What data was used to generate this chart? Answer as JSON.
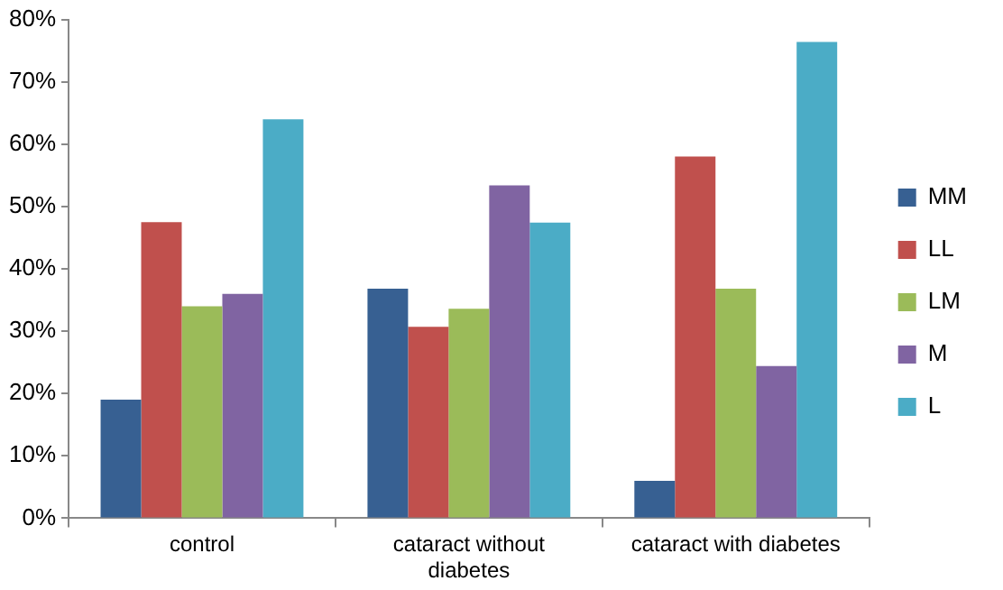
{
  "chart_data": {
    "type": "bar",
    "categories": [
      "control",
      "cataract without diabetes",
      "cataract with diabetes"
    ],
    "series": [
      {
        "name": "MM",
        "color": "#376092",
        "values": [
          19,
          36.8,
          6
        ]
      },
      {
        "name": "LL",
        "color": "#c0504d",
        "values": [
          47.5,
          30.7,
          58
        ]
      },
      {
        "name": "LM",
        "color": "#9bbb59",
        "values": [
          34,
          33.6,
          36.8
        ]
      },
      {
        "name": "M",
        "color": "#8064a2",
        "values": [
          36,
          53.4,
          24.4
        ]
      },
      {
        "name": "L",
        "color": "#4bacc6",
        "values": [
          64,
          47.4,
          76.4
        ]
      }
    ],
    "ylim": [
      0,
      80
    ],
    "yticks": [
      {
        "value": 0,
        "label": "0%"
      },
      {
        "value": 10,
        "label": "10%"
      },
      {
        "value": 20,
        "label": "20%"
      },
      {
        "value": 30,
        "label": "30%"
      },
      {
        "value": 40,
        "label": "40%"
      },
      {
        "value": 50,
        "label": "50%"
      },
      {
        "value": 60,
        "label": "60%"
      },
      {
        "value": 70,
        "label": "70%"
      },
      {
        "value": 80,
        "label": "80%"
      }
    ],
    "grid": false,
    "legend": "right"
  }
}
